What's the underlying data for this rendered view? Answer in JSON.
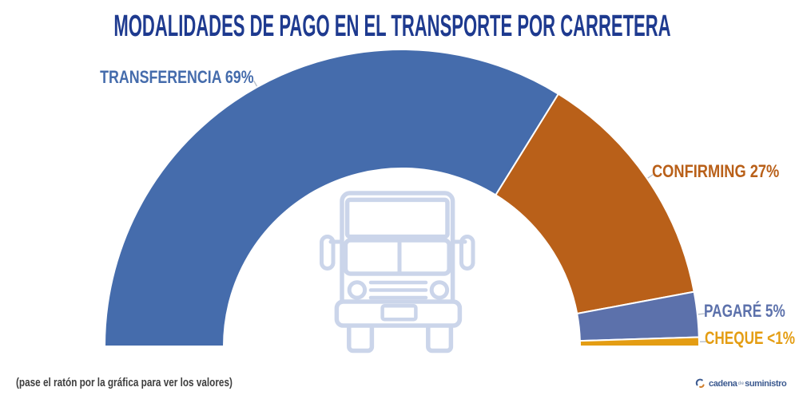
{
  "title": "MODALIDADES DE PAGO EN EL TRANSPORTE POR CARRETERA",
  "title_color": "#1e3a8f",
  "footnote": "(pase el ratón por la gráfica para ver los valores)",
  "footnote_color": "#3e3e3e",
  "truck_icon_color": "#cbd5ea",
  "tick_color": "#b9c1cc",
  "logo": {
    "word1": "cadena",
    "word2": "de",
    "word3": "suministro",
    "text_color": "#3c5a90",
    "de_color": "#9aa9c0",
    "icon_blue": "#3c5a90",
    "icon_orange": "#d07f2e"
  },
  "chart_data": {
    "type": "pie",
    "variant": "half-donut",
    "title": "MODALIDADES DE PAGO EN EL TRANSPORTE POR CARRETERA",
    "legend_position": "none",
    "start_angle_deg": 180,
    "end_angle_deg": 0,
    "slices": [
      {
        "label": "TRANSFERENCIA",
        "value": 69,
        "value_display": "69%",
        "label_display": "TRANSFERENCIA 69%",
        "color": "#456cac"
      },
      {
        "label": "CONFIRMING",
        "value": 27,
        "value_display": "27%",
        "label_display": "CONFIRMING 27%",
        "color": "#b96019"
      },
      {
        "label": "PAGARÉ",
        "value": 5,
        "value_display": "5%",
        "label_display": "PAGARÉ 5%",
        "color": "#5c71ab"
      },
      {
        "label": "CHEQUE",
        "value": 1,
        "value_display": "<1%",
        "label_display": "CHEQUE <1%",
        "color": "#e49d13"
      }
    ]
  }
}
